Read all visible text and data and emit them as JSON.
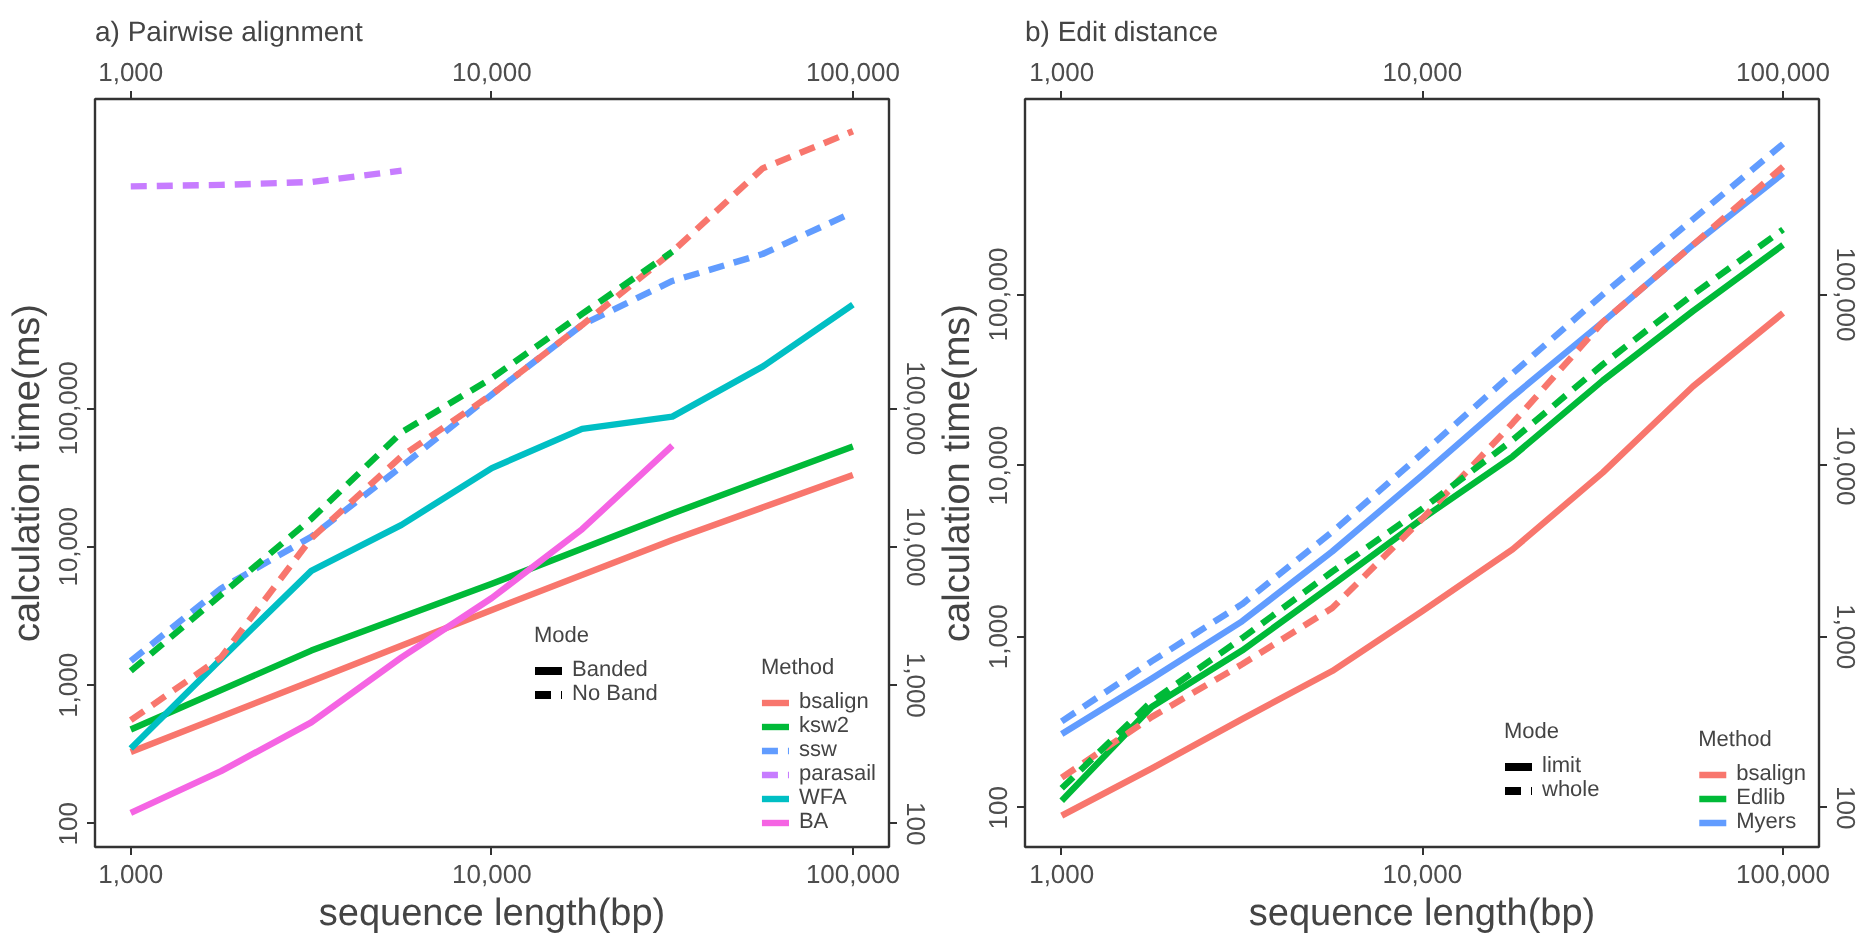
{
  "chart_data": [
    {
      "type": "line",
      "title": "a) Pairwise alignment",
      "xlabel": "sequence length(bp)",
      "ylabel": "calculation time(ms)",
      "log": "xy",
      "grid": false,
      "legend": "bottom right",
      "legend_title": "Method",
      "annotations": [
        "Mode",
        "Banded",
        "No Band"
      ],
      "xlim": [
        796,
        125900
      ],
      "xticks": [
        {
          "value": 1000,
          "label": "1,000"
        },
        {
          "value": 10000,
          "label": "10,000"
        },
        {
          "value": 100000,
          "label": "100,000"
        }
      ],
      "ylim": [
        68,
        17100000
      ],
      "yticks": [
        {
          "value": 100,
          "label": "100"
        },
        {
          "value": 1000,
          "label": "1,000"
        },
        {
          "value": 10000,
          "label": "10,000"
        },
        {
          "value": 100000,
          "label": "100,000"
        }
      ],
      "x": [
        1000,
        1778,
        3162,
        5623,
        10000,
        17783,
        31623,
        56234,
        100000
      ],
      "series": [
        {
          "name": "bsalign",
          "color": "#f8766d",
          "line_style": "solid",
          "x": [
            1000,
            3162,
            10000,
            31623,
            100000
          ],
          "values": [
            330,
            1070,
            3500,
            11200,
            33000
          ]
        },
        {
          "name": "ksw2",
          "color": "#00ba38",
          "line_style": "solid",
          "x": [
            1000,
            3162,
            10000,
            31623,
            100000
          ],
          "values": [
            480,
            1780,
            5400,
            17400,
            53000
          ]
        },
        {
          "name": "ssw",
          "color": "#619cff",
          "line_style": "dashed",
          "values": [
            1500,
            5000,
            11800,
            38000,
            126000,
            400000,
            830000,
            1300000,
            2600000
          ]
        },
        {
          "name": "parasail",
          "color": "#c77cff",
          "line_style": "dashed",
          "x": [
            1000,
            1778,
            3162,
            5623
          ],
          "values": [
            4000000,
            4100000,
            4300000,
            5200000
          ]
        },
        {
          "name": "WFA",
          "color": "#00bfc4",
          "line_style": "solid",
          "values": [
            350,
            1550,
            6700,
            14400,
            37000,
            71000,
            87000,
            200000,
            560000
          ]
        },
        {
          "name": "BA",
          "color": "#f564e3",
          "line_style": "solid",
          "x": [
            1000,
            1778,
            3162,
            5623,
            10000,
            17783,
            31623
          ],
          "values": [
            120,
            240,
            540,
            1590,
            4270,
            13400,
            53700
          ]
        },
        {
          "color": "#f8766d",
          "line_style": "dashed",
          "values": [
            560,
            1590,
            11500,
            45000,
            126000,
            400000,
            1350000,
            5400000,
            10000000
          ]
        },
        {
          "color": "#00ba38",
          "line_style": "dashed",
          "x": [
            1000,
            1778,
            3162,
            5623,
            10000,
            17783,
            31623
          ],
          "values": [
            1270,
            4500,
            15900,
            67000,
            165000,
            480000,
            1350000
          ]
        }
      ]
    },
    {
      "type": "line",
      "title": "b) Edit distance",
      "xlabel": "sequence length(bp)",
      "ylabel": "calculation time(ms)",
      "log": "xy",
      "grid": false,
      "legend": "bottom right",
      "legend_title": "Method",
      "annotations": [
        "Mode",
        "limit",
        "whole"
      ],
      "xlim": [
        791,
        125800
      ],
      "xticks": [
        {
          "value": 1000,
          "label": "1,000"
        },
        {
          "value": 10000,
          "label": "10,000"
        },
        {
          "value": 100000,
          "label": "100,000"
        }
      ],
      "ylim": [
        59,
        1390000
      ],
      "yticks": [
        {
          "value": 100,
          "label": "100"
        },
        {
          "value": 1000,
          "label": "1,000"
        },
        {
          "value": 10000,
          "label": "10,000"
        },
        {
          "value": 100000,
          "label": "100,000"
        }
      ],
      "x": [
        1000,
        1778,
        3162,
        5623,
        10000,
        17783,
        31623,
        56234,
        100000
      ],
      "series": [
        {
          "name": "bsalign",
          "color": "#f8766d",
          "line_style": "solid",
          "values": [
            90,
            170,
            330,
            630,
            1410,
            3240,
            9100,
            29000,
            78000
          ]
        },
        {
          "name": "Edlib",
          "color": "#00ba38",
          "line_style": "solid",
          "values": [
            110,
            390,
            830,
            2000,
            4900,
            11300,
            31400,
            80000,
            195000
          ]
        },
        {
          "name": "Myers",
          "color": "#619cff",
          "line_style": "solid",
          "values": [
            270,
            570,
            1230,
            3150,
            8800,
            25300,
            69000,
            195000,
            510000
          ]
        },
        {
          "color": "#f8766d",
          "line_style": "dashed",
          "values": [
            150,
            340,
            690,
            1470,
            4900,
            17700,
            69000,
            195000,
            560000
          ]
        },
        {
          "color": "#00ba38",
          "line_style": "dashed",
          "values": [
            130,
            420,
            980,
            2400,
            5600,
            14100,
            39000,
            100000,
            240000
          ]
        },
        {
          "color": "#619cff",
          "line_style": "dashed",
          "values": [
            320,
            720,
            1550,
            4100,
            11800,
            34600,
            100000,
            275000,
            760000
          ]
        }
      ]
    }
  ]
}
